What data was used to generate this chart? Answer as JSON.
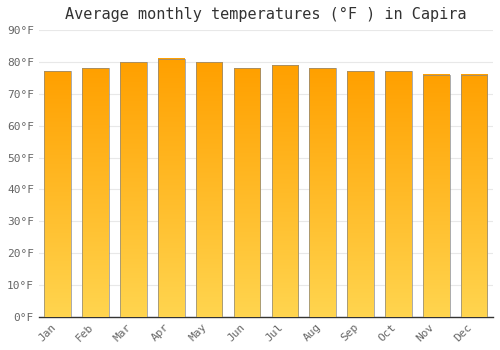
{
  "title": "Average monthly temperatures (°F ) in Capira",
  "months": [
    "Jan",
    "Feb",
    "Mar",
    "Apr",
    "May",
    "Jun",
    "Jul",
    "Aug",
    "Sep",
    "Oct",
    "Nov",
    "Dec"
  ],
  "values": [
    77,
    78,
    80,
    81,
    80,
    78,
    79,
    78,
    77,
    77,
    76,
    76
  ],
  "bar_color_top": "#FFD54F",
  "bar_color_bottom": "#FFA000",
  "background_color": "#FFFFFF",
  "plot_bg_color": "#FFFFFF",
  "ylim": [
    0,
    90
  ],
  "yticks": [
    0,
    10,
    20,
    30,
    40,
    50,
    60,
    70,
    80,
    90
  ],
  "grid_color": "#E8E8E8",
  "title_fontsize": 11,
  "tick_fontsize": 8,
  "bar_edge_color": "#888888",
  "bar_width": 0.7
}
